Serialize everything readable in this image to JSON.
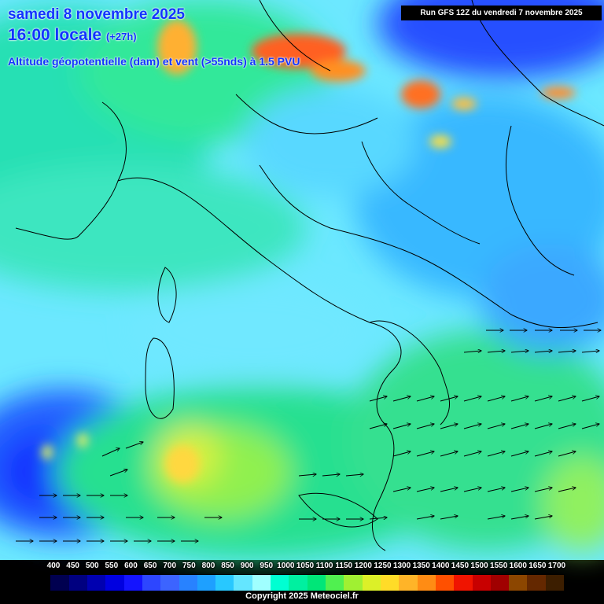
{
  "title": {
    "date": "samedi 8 novembre 2025",
    "time": "16:00 locale",
    "lead": "(+27h)",
    "variable": "Altitude géopotentielle (dam) et vent (>55nds) à 1.5 PVU"
  },
  "run_info": "Run GFS 12Z du vendredi 7 novembre 2025",
  "copyright": "Copyright 2025 Meteociel.fr",
  "legend": {
    "labels": [
      "400",
      "450",
      "500",
      "550",
      "600",
      "650",
      "700",
      "750",
      "800",
      "850",
      "900",
      "950",
      "1000",
      "1050",
      "1100",
      "1150",
      "1200",
      "1250",
      "1300",
      "1350",
      "1400",
      "1450",
      "1500",
      "1550",
      "1600",
      "1650",
      "1700"
    ],
    "colors": [
      "#000000",
      "#000050",
      "#000080",
      "#0000b0",
      "#0000e0",
      "#1414ff",
      "#2d46ff",
      "#3c64ff",
      "#2882ff",
      "#1ea0ff",
      "#28c8ff",
      "#64e6ff",
      "#a0ffff",
      "#00ffd2",
      "#00f0a0",
      "#00e678",
      "#50f050",
      "#a0f032",
      "#dcf028",
      "#ffdc28",
      "#ffb428",
      "#ff8c14",
      "#ff5000",
      "#f01400",
      "#c80000",
      "#a00000",
      "#8c4600",
      "#642800",
      "#3c1e00"
    ],
    "level_colors": {
      "low": "#1133ff",
      "mid": "#28c8ff",
      "high": "#50f050",
      "peak": "#ff5000"
    }
  }
}
